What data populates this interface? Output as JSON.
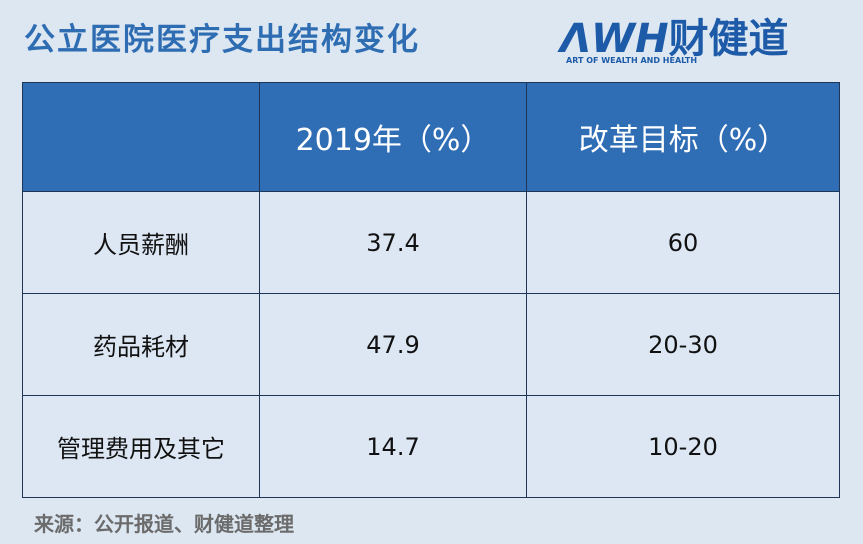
{
  "header": {
    "title": "公立医院医疗支出结构变化",
    "logo": "ΛWH",
    "logo_cn": "财健道",
    "logo_tagline": "ART OF WEALTH AND HEALTH"
  },
  "table": {
    "columns": [
      "2019年（%）",
      "改革目标（%）"
    ],
    "rows": [
      [
        "人员薪酬",
        "37.4",
        "60"
      ],
      [
        "药品耗材",
        "47.9",
        "20-30"
      ],
      [
        "管理费用及其它",
        "14.7",
        "10-20"
      ]
    ]
  },
  "footer": {
    "source": "来源：公开报道、财健道整理"
  }
}
